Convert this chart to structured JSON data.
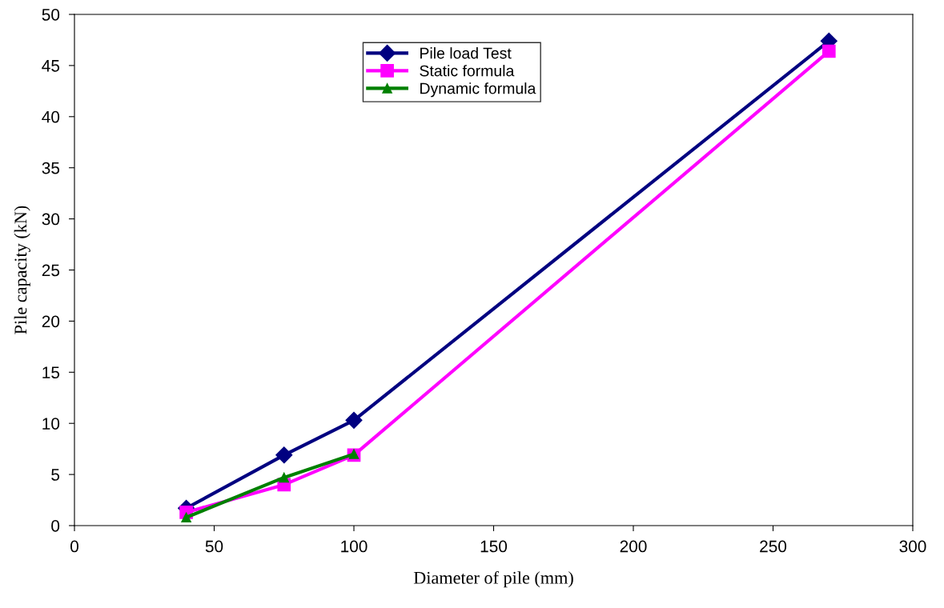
{
  "chart_data": {
    "type": "line",
    "xlabel": "Diameter of pile (mm)",
    "ylabel": "Pile capacity (kN)",
    "xlim": [
      0,
      300
    ],
    "xticks": [
      0,
      50,
      100,
      150,
      200,
      250,
      300
    ],
    "ylim": [
      0,
      50
    ],
    "yticks": [
      0,
      5,
      10,
      15,
      20,
      25,
      30,
      35,
      40,
      45,
      50
    ],
    "grid": false,
    "legend": "top",
    "series": [
      {
        "name": "Pile load Test",
        "color": "#000080",
        "marker": "diamond",
        "x": [
          40,
          75,
          100,
          270
        ],
        "values": [
          1.7,
          6.9,
          10.3,
          47.4
        ]
      },
      {
        "name": "Static formula",
        "color": "#ff00ff",
        "marker": "square",
        "x": [
          40,
          75,
          100,
          270
        ],
        "values": [
          1.3,
          4.0,
          6.9,
          46.4
        ]
      },
      {
        "name": "Dynamic formula",
        "color": "#008000",
        "marker": "triangle",
        "x": [
          40,
          75,
          100
        ],
        "values": [
          0.8,
          4.7,
          7.0
        ]
      }
    ]
  }
}
